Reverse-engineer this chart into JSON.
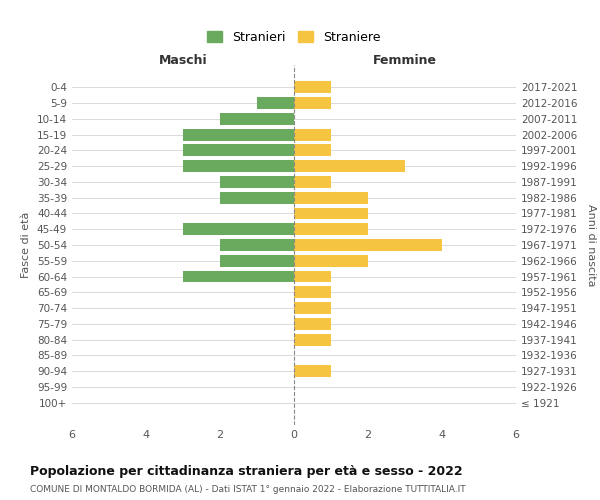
{
  "age_groups": [
    "100+",
    "95-99",
    "90-94",
    "85-89",
    "80-84",
    "75-79",
    "70-74",
    "65-69",
    "60-64",
    "55-59",
    "50-54",
    "45-49",
    "40-44",
    "35-39",
    "30-34",
    "25-29",
    "20-24",
    "15-19",
    "10-14",
    "5-9",
    "0-4"
  ],
  "birth_years": [
    "≤ 1921",
    "1922-1926",
    "1927-1931",
    "1932-1936",
    "1937-1941",
    "1942-1946",
    "1947-1951",
    "1952-1956",
    "1957-1961",
    "1962-1966",
    "1967-1971",
    "1972-1976",
    "1977-1981",
    "1982-1986",
    "1987-1991",
    "1992-1996",
    "1997-2001",
    "2002-2006",
    "2007-2011",
    "2012-2016",
    "2017-2021"
  ],
  "maschi": [
    0,
    0,
    0,
    0,
    0,
    0,
    0,
    0,
    3,
    2,
    2,
    3,
    0,
    2,
    2,
    3,
    3,
    3,
    2,
    1,
    0
  ],
  "femmine": [
    0,
    0,
    1,
    0,
    1,
    1,
    1,
    1,
    1,
    2,
    4,
    2,
    2,
    2,
    1,
    3,
    1,
    1,
    0,
    1,
    1
  ],
  "color_maschi": "#6aaa5e",
  "color_femmine": "#f5c542",
  "title": "Popolazione per cittadinanza straniera per età e sesso - 2022",
  "subtitle": "COMUNE DI MONTALDO BORMIDA (AL) - Dati ISTAT 1° gennaio 2022 - Elaborazione TUTTITALIA.IT",
  "ylabel_left": "Fasce di età",
  "ylabel_right": "Anni di nascita",
  "xlabel_left": "Maschi",
  "xlabel_right": "Femmine",
  "legend_maschi": "Stranieri",
  "legend_femmine": "Straniere",
  "xlim": 6,
  "background_color": "#ffffff",
  "grid_color": "#cccccc"
}
